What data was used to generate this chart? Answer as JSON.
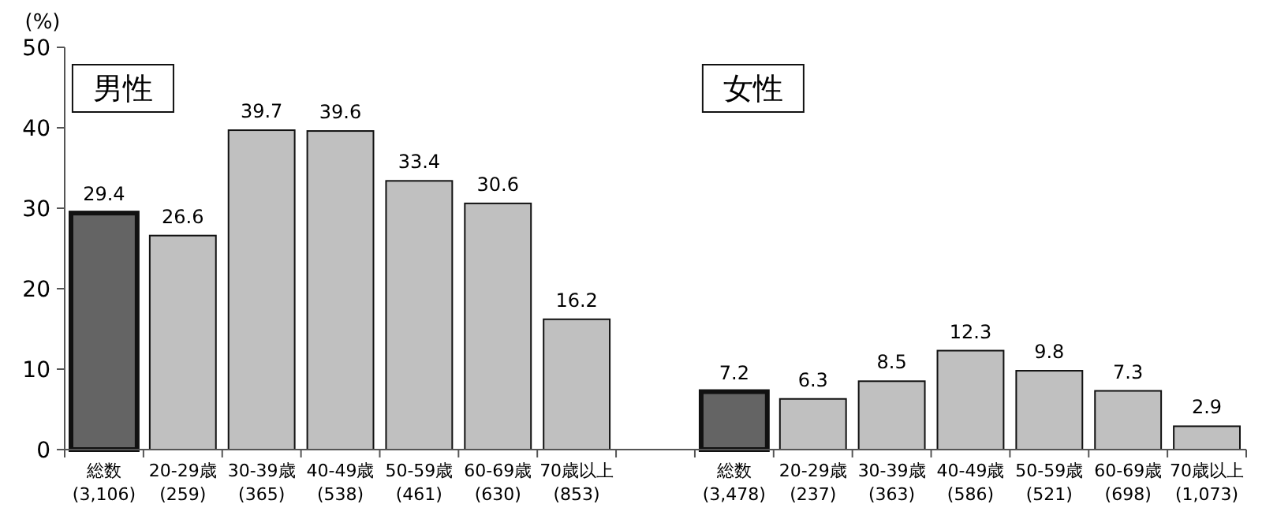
{
  "chart_data": {
    "type": "bar",
    "ylabel": "(%)",
    "categories": [
      "総数\n(3,106)",
      "20-29歳\n(259)",
      "30-39歳\n(365)",
      "40-49歳\n(538)",
      "50-59歳\n(461)",
      "60-69歳\n(630)",
      "70歳以上\n(853)",
      null,
      "総数\n(3,478)",
      "20-29歳\n(237)",
      "30-39歳\n(363)",
      "40-49歳\n(586)",
      "50-59歳\n(521)",
      "60-69歳\n(698)",
      "70歳以上\n(1,073)"
    ],
    "values": [
      29.4,
      26.6,
      39.7,
      39.6,
      33.4,
      30.6,
      16.2,
      null,
      7.2,
      6.3,
      8.5,
      12.3,
      9.8,
      7.3,
      2.9
    ],
    "colors": [
      "#646464",
      "#c0c0c0",
      "#c0c0c0",
      "#c0c0c0",
      "#c0c0c0",
      "#c0c0c0",
      "#c0c0c0",
      null,
      "#646464",
      "#c0c0c0",
      "#c0c0c0",
      "#c0c0c0",
      "#c0c0c0",
      "#c0c0c0",
      "#c0c0c0"
    ],
    "ylim": [
      0,
      50
    ],
    "yticks": [
      0,
      10,
      20,
      30,
      40,
      50
    ],
    "data_labels": true,
    "grid": false,
    "annotations": [
      "男性",
      "女性"
    ]
  }
}
